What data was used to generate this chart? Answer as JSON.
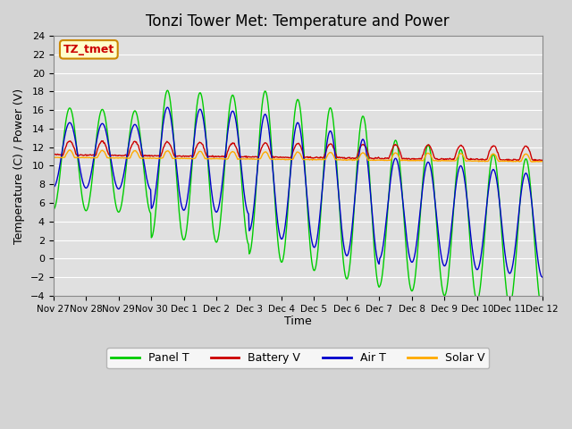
{
  "title": "Tonzi Tower Met: Temperature and Power",
  "xlabel": "Time",
  "ylabel": "Temperature (C) / Power (V)",
  "ylim": [
    -4,
    24
  ],
  "yticks": [
    -4,
    -2,
    0,
    2,
    4,
    6,
    8,
    10,
    12,
    14,
    16,
    18,
    20,
    22,
    24
  ],
  "xtick_labels": [
    "Nov 27",
    "Nov 28",
    "Nov 29",
    "Nov 30",
    "Dec 1",
    "Dec 2",
    "Dec 3",
    "Dec 4",
    "Dec 5",
    "Dec 6",
    "Dec 7",
    "Dec 8",
    "Dec 9",
    "Dec 10",
    "Dec 11",
    "Dec 12"
  ],
  "colors": {
    "panel_t": "#00cc00",
    "battery_v": "#cc0000",
    "air_t": "#0000cc",
    "solar_v": "#ffaa00"
  },
  "fig_bg_color": "#d4d4d4",
  "plot_bg_color": "#e0e0e0",
  "legend_label_box": "TZ_tmet",
  "legend_entries": [
    "Panel T",
    "Battery V",
    "Air T",
    "Solar V"
  ],
  "num_days": 15,
  "pts_per_day": 48
}
